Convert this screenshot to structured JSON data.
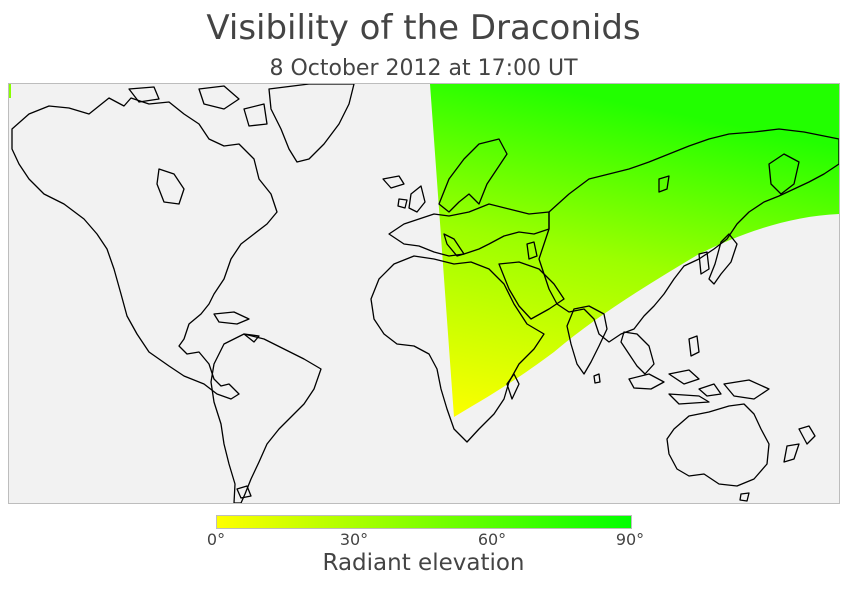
{
  "title": "Visibility of the Draconids",
  "subtitle": "8 October 2012 at 17:00 UT",
  "colorbar": {
    "label": "Radiant elevation",
    "ticks": [
      "0°",
      "30°",
      "60°",
      "90°"
    ],
    "min_color": "#ffff00",
    "max_color": "#00ff00"
  },
  "map": {
    "projection": "mercator",
    "land_outline_color": "#000000",
    "background_color": "#f2f2f2",
    "visible_region": "Europe, Africa, Middle East, Asia (radiant above horizon)"
  }
}
